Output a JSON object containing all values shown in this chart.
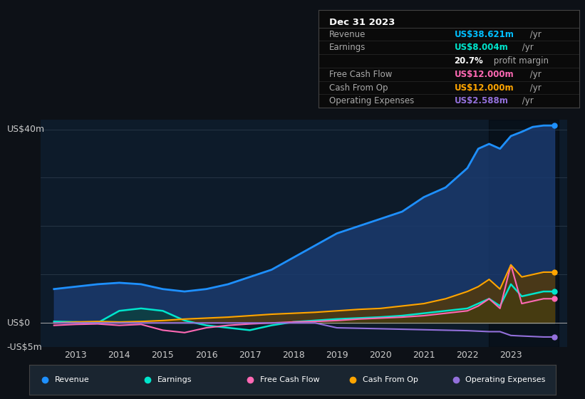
{
  "bg_color": "#0d1117",
  "plot_bg_color": "#0d1b2a",
  "title_box": {
    "date": "Dec 31 2023",
    "rows": [
      {
        "label": "Revenue",
        "value": "US$38.621m",
        "value_color": "#00bfff",
        "suffix": " /yr"
      },
      {
        "label": "Earnings",
        "value": "US$8.004m",
        "value_color": "#00e5cc",
        "suffix": " /yr"
      },
      {
        "label": "",
        "value": "20.7%",
        "value_color": "#ffffff",
        "suffix": " profit margin"
      },
      {
        "label": "Free Cash Flow",
        "value": "US$12.000m",
        "value_color": "#ff69b4",
        "suffix": " /yr"
      },
      {
        "label": "Cash From Op",
        "value": "US$12.000m",
        "value_color": "#ffa500",
        "suffix": " /yr"
      },
      {
        "label": "Operating Expenses",
        "value": "US$2.588m",
        "value_color": "#9370db",
        "suffix": " /yr"
      }
    ]
  },
  "ylabel_top": "US$40m",
  "ylabel_zero": "US$0",
  "ylabel_neg": "-US$5m",
  "ylim": [
    -5,
    42
  ],
  "yticks": [
    0,
    10,
    20,
    30,
    40
  ],
  "years": [
    2012.5,
    2013,
    2013.5,
    2014,
    2014.5,
    2015,
    2015.5,
    2016,
    2016.5,
    2017,
    2017.5,
    2018,
    2018.5,
    2019,
    2019.5,
    2020,
    2020.5,
    2021,
    2021.5,
    2022,
    2022.25,
    2022.5,
    2022.75,
    2023,
    2023.25,
    2023.5,
    2023.75,
    2024.0
  ],
  "revenue": [
    7.0,
    7.5,
    8.0,
    8.3,
    8.0,
    7.0,
    6.5,
    7.0,
    8.0,
    9.5,
    11.0,
    13.5,
    16.0,
    18.5,
    20.0,
    21.5,
    23.0,
    26.0,
    28.0,
    32.0,
    36.0,
    37.0,
    36.0,
    38.621,
    39.5,
    40.5,
    40.8,
    40.8
  ],
  "earnings": [
    0.3,
    0.2,
    0.0,
    2.5,
    3.0,
    2.5,
    0.5,
    -0.5,
    -1.0,
    -1.5,
    -0.5,
    0.2,
    0.5,
    0.8,
    1.0,
    1.2,
    1.5,
    2.0,
    2.5,
    3.0,
    4.0,
    5.0,
    3.5,
    8.004,
    5.5,
    6.0,
    6.5,
    6.5
  ],
  "free_cash_flow": [
    -0.5,
    -0.3,
    -0.2,
    -0.5,
    -0.3,
    -1.5,
    -2.0,
    -1.0,
    -0.5,
    -0.2,
    0.0,
    0.2,
    0.3,
    0.5,
    0.8,
    1.0,
    1.2,
    1.5,
    2.0,
    2.5,
    3.5,
    5.0,
    3.0,
    12.0,
    4.0,
    4.5,
    5.0,
    5.0
  ],
  "cash_from_op": [
    0.0,
    0.2,
    0.3,
    0.2,
    0.3,
    0.5,
    0.8,
    1.0,
    1.2,
    1.5,
    1.8,
    2.0,
    2.2,
    2.5,
    2.8,
    3.0,
    3.5,
    4.0,
    5.0,
    6.5,
    7.5,
    9.0,
    7.0,
    12.0,
    9.5,
    10.0,
    10.5,
    10.5
  ],
  "op_expenses": [
    0.0,
    0.0,
    0.0,
    0.0,
    0.0,
    0.0,
    0.0,
    0.0,
    0.0,
    0.0,
    0.0,
    0.0,
    0.0,
    -1.0,
    -1.1,
    -1.2,
    -1.3,
    -1.4,
    -1.5,
    -1.6,
    -1.7,
    -1.8,
    -1.8,
    -2.588,
    -2.7,
    -2.8,
    -2.9,
    -2.9
  ],
  "revenue_color": "#1e90ff",
  "earnings_color": "#00e5cc",
  "free_cash_flow_color": "#ff69b4",
  "cash_from_op_color": "#ffa500",
  "op_expenses_color": "#9370db",
  "revenue_fill_color": "#1a3a6e",
  "earnings_fill_color": "#0d4040",
  "cash_from_op_fill_color": "#5a3a00",
  "grid_color": "#2a3a4a",
  "zero_line_color": "#aaaaaa",
  "text_color": "#cccccc",
  "legend_bg": "#1a2530",
  "xtick_years": [
    2013,
    2014,
    2015,
    2016,
    2017,
    2018,
    2019,
    2020,
    2021,
    2022,
    2023
  ],
  "shaded_region_start": 2022.5
}
